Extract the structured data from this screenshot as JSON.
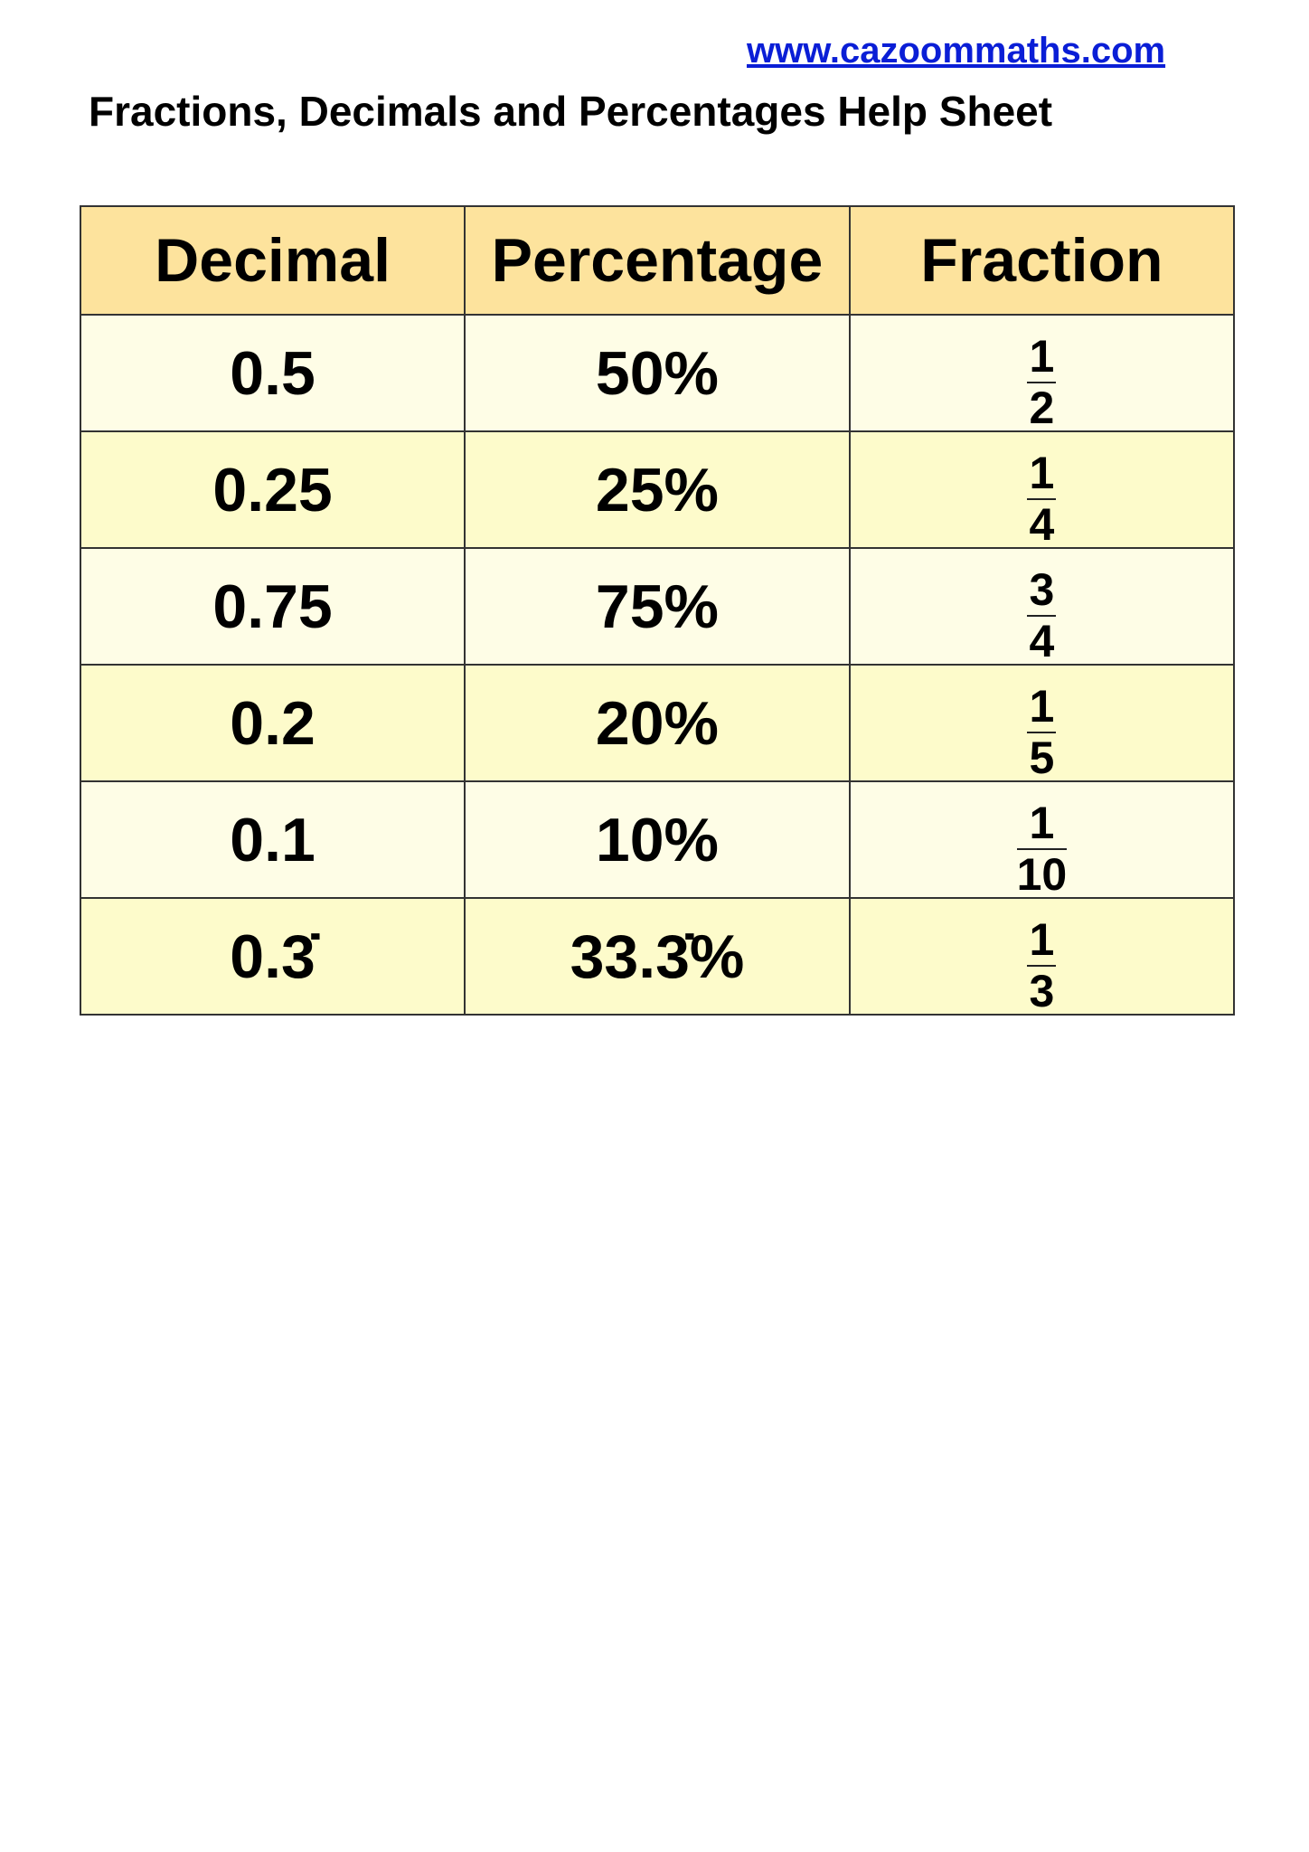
{
  "header": {
    "url": "www.cazoommaths.com",
    "title": "Fractions, Decimals and Percentages Help Sheet"
  },
  "table": {
    "columns": [
      "Decimal",
      "Percentage",
      "Fraction"
    ],
    "rows": [
      {
        "decimal": "0.5",
        "percentage": "50%",
        "numerator": "1",
        "denominator": "2"
      },
      {
        "decimal": "0.25",
        "percentage": "25%",
        "numerator": "1",
        "denominator": "4"
      },
      {
        "decimal": "0.75",
        "percentage": "75%",
        "numerator": "3",
        "denominator": "4"
      },
      {
        "decimal": "0.2",
        "percentage": "20%",
        "numerator": "1",
        "denominator": "5"
      },
      {
        "decimal": "0.1",
        "percentage": "10%",
        "numerator": "1",
        "denominator": "10"
      },
      {
        "decimal": "0.3̇",
        "percentage": "33.3̇%",
        "numerator": "1",
        "denominator": "3"
      }
    ],
    "colors": {
      "header": "#fde39d",
      "row_light": "#fefde6",
      "row_dark": "#fdfbcb",
      "link": "#0a1ed6"
    }
  }
}
